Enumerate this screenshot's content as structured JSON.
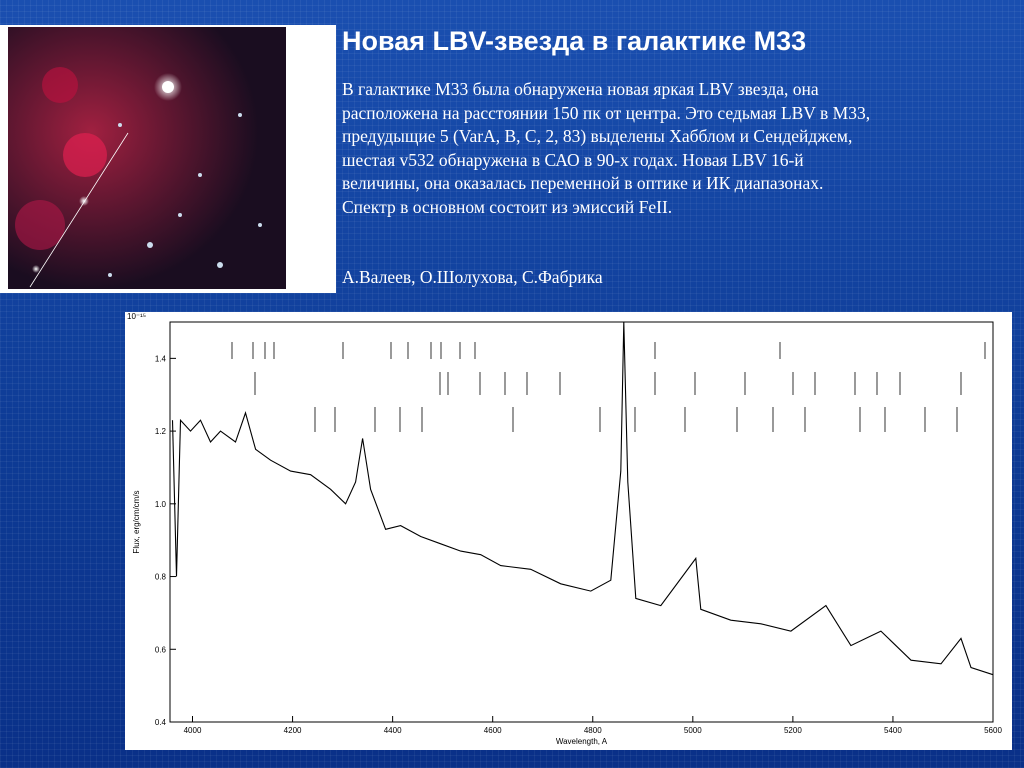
{
  "slide": {
    "title": "Новая LBV-звезда в галактике М33",
    "paragraph": [
      "В галактике М33 была обнаружена новая яркая LBV звезда, она",
      "расположена на расстоянии 150 пк от центра. Это седьмая LBV в М33,",
      "предудыщие 5 (VarA, B, C, 2, 83) выделены Хабблом и Сендейджем,",
      "шестая v532 обнаружена в САО в 90-х годах. Новая LBV 16-й",
      "величины, она оказалась переменной в оптике и ИК диапазонах.",
      "Спектр в основном состоит из эмиссий FeII."
    ],
    "authors": "А.Валеев, О.Шолухова, С.Фабрика"
  },
  "chart_data": {
    "type": "line",
    "x_label": "Wavelength, A",
    "y_label": "Flux, erg/cm/cm/s",
    "scale_label": "10⁻¹⁵",
    "color": "#000000",
    "x": [
      3960,
      3968,
      3976,
      3996,
      4016,
      4036,
      4056,
      4086,
      4106,
      4126,
      4156,
      4196,
      4236,
      4276,
      4306,
      4326,
      4340,
      4356,
      4386,
      4416,
      4456,
      4496,
      4536,
      4576,
      4616,
      4676,
      4736,
      4796,
      4836,
      4856,
      4862,
      4870,
      4886,
      4936,
      5006,
      5016,
      5076,
      5136,
      5196,
      5266,
      5316,
      5376,
      5436,
      5496,
      5536,
      5556,
      5600
    ],
    "values": [
      1.23,
      0.8,
      1.23,
      1.2,
      1.23,
      1.17,
      1.2,
      1.17,
      1.25,
      1.15,
      1.12,
      1.09,
      1.08,
      1.04,
      1.0,
      1.06,
      1.18,
      1.04,
      0.93,
      0.94,
      0.91,
      0.89,
      0.87,
      0.86,
      0.83,
      0.82,
      0.78,
      0.76,
      0.79,
      1.09,
      1.5,
      1.06,
      0.74,
      0.72,
      0.85,
      0.71,
      0.68,
      0.67,
      0.65,
      0.72,
      0.61,
      0.65,
      0.57,
      0.56,
      0.63,
      0.55,
      0.53
    ],
    "xlim": [
      3955,
      5600
    ],
    "ylim": [
      0.4,
      1.5
    ],
    "xticks": [
      4000,
      4200,
      4400,
      4600,
      4800,
      5000,
      5200,
      5400,
      5600
    ],
    "yticks": [
      0.4,
      0.6,
      0.8,
      {
        "value": 1,
        "label": "1.0"
      },
      1.2,
      1.4
    ]
  }
}
